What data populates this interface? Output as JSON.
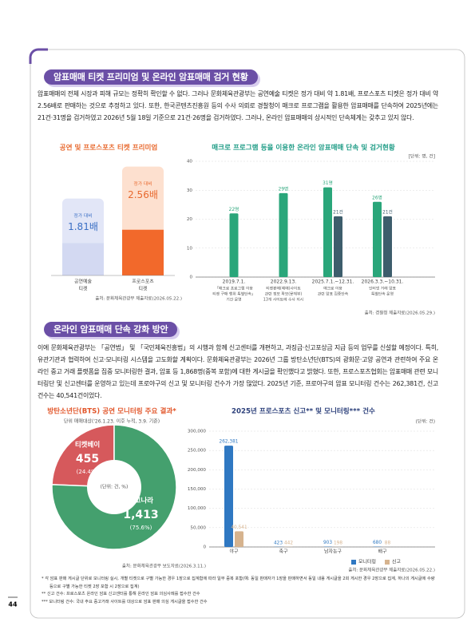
{
  "section1": {
    "title": "암표매매 티켓 프리미엄 및 온라인 암표매매 검거 현황",
    "body": "암표매매의 전체 시장과 피해 규모는 정확히 확인할 수 없다. 그러나 문화체육관광부는 공연예술 티켓은 정가 대비 약 1.81배, 프로스포츠 티켓은 정가 대비 약 2.56배로 판매하는 것으로 추정하고 있다. 또한, 한국콘텐츠진흥원 등의 수사 의뢰로 경찰청이 매크로 프로그램을 활용한 암표매매를 단속하여 2025년에는 21건·31명을 검거하였고 2026년 5월 18일 기준으로 21건·26명을 검거하였다. 그러나, 온라인 암표매매의 상시적인 단속체계는 갖추고 있지 않다."
  },
  "section2": {
    "title": "온라인 암표매매 단속 강화 방안",
    "body": "이에 문화체육관광부는 「공연법」 및 「국민체육진흥법」의 시행과 함께 신고센터를 개편하고, 과징금·신고포상금 지급 등의 업무를 신설할 예정이다. 특히, 유관기관과 협력하여 신고·모니터링 시스템을 고도화할 계획이다. 문화체육관광부는 2026년 그룹 방탄소년단(BTS)의 광화문·고양 공연과 관련하여 주요 온라인 중고 거래 플랫폼을 집중 모니터링한 결과, 암표 등 1,868명(중복 포함)에 대한 게시글을 확인했다고 밝혔다. 또한, 프로스포츠협회는 암표매매 관련 모니터링단 및 신고센터를 운영하고 있는데 프로야구의 신고 및 모니터링 건수가 가장 많았다. 2025년 기준, 프로야구의 암표 모니터링 건수는 262,381건, 신고 건수는 40,541건이었다."
  },
  "footnotes": [
    "* 각 암표 판매 게시글 단위로 모니터링 실시, 개별 티켓으로 구별 가능한 경우 1장으로 집계함에 따라 일부 중복 포함(예: 동일 판매자가 1장을 판매하면서 동일 내용 게시글을 2회 게시한 경우 2장으로 집계, 하나의 게시글에 수량 등으로 구별 가능한 티켓 2장 포함 시 2장으로 집계)",
    "** 신고 건수: 프로스포츠 온라인 암표 신고센터를 통해 온라인 암표 의심사례를 접수한 건수",
    "*** 모니터링 건수: 국내 주요 중고거래 사이트를 대상으로 암표 판매 의심 게시글을 접수한 건수"
  ],
  "page_number": "44",
  "chart_data": [
    {
      "type": "bar",
      "title": "공연 및 프로스포츠 티켓 프리미엄",
      "categories": [
        [
          "공연예술",
          "티켓"
        ],
        [
          "프로스포츠",
          "티켓"
        ]
      ],
      "values": [
        1.81,
        2.56
      ],
      "value_labels": [
        "1.81배",
        "2.56배"
      ],
      "value_captions": [
        "정가 대비",
        "정가 대비"
      ],
      "colors": [
        "#e2e6f7",
        "#fde0cf"
      ],
      "base_colors": [
        "#d3d9f2",
        "#f2692b"
      ],
      "label_colors": [
        "#3b6fc4",
        "#e8692e"
      ],
      "title_color": "#e8692e",
      "source": "출처: 문화체육관광부 제출자료(2026.05.22.)"
    },
    {
      "type": "bar",
      "title": "매크로 프로그램 등을 이용한 온라인 암표매매 단속 및 검거현황",
      "unit": "[단위: 명, 건]",
      "title_color": "#1f9c86",
      "categories": [
        "2019.7.1.",
        "2022.9.13.",
        "2025.7.1.~12.31.",
        "2026.3.3.~10.31."
      ],
      "category_notes": [
        [
          "「매크로 프로그램 이용",
          "티켓 구매 행위 특별단속」",
          "기간 운영"
        ],
        [
          "티켓판매(예매)사이트",
          "관련 정보 확보(문체부)",
          "13개 사이트에 수사 지시"
        ],
        [
          "매크로 이용",
          "관련 암표 집중단속"
        ],
        [
          "인터넷 거래 암표",
          "특별단속 운영"
        ]
      ],
      "series": [
        {
          "color": "#2aa67a",
          "values": [
            22,
            29,
            31,
            26
          ],
          "value_labels": [
            "22명",
            "29명",
            "31명",
            "26명"
          ]
        },
        {
          "color": "#3d5d6c",
          "values": [
            null,
            null,
            21,
            21
          ],
          "value_labels": [
            null,
            null,
            "21건",
            "21건"
          ]
        }
      ],
      "ylim": [
        0,
        40
      ],
      "yticks": [
        0,
        10,
        20,
        30,
        40
      ],
      "grid": true,
      "source": "출처: 경찰청 제출자료(2026.05.29.)"
    },
    {
      "type": "pie",
      "title": "방탄소년단(BTS) 공연 모니터링 주요 결과*",
      "subtitle": "단위 매매대상('26.1.23. 이후 누적, 3.9. 기준)",
      "title_color": "#e2572b",
      "center_label": "(단위: 건, %)",
      "categories": [
        "티켓베이",
        "중고나라"
      ],
      "values": [
        455,
        1413
      ],
      "value_labels": [
        "455",
        "1,413"
      ],
      "percents": [
        24.4,
        75.6
      ],
      "percent_labels": [
        "(24.4%)",
        "(75.6%)"
      ],
      "colors": [
        "#d6595c",
        "#44a06e"
      ],
      "source": "출처: 문화체육관광부 보도자료(2026.3.11.)"
    },
    {
      "type": "bar",
      "title": "2025년 프로스포츠 신고** 및 모니터링*** 건수",
      "unit": "(단위: 건)",
      "title_color": "#2b3f7a",
      "categories": [
        "야구",
        "축구",
        "남자농구",
        "배구"
      ],
      "series": [
        {
          "name": "모니터링",
          "color": "#2f78c2",
          "values": [
            262381,
            423,
            903,
            680
          ],
          "value_labels": [
            "262,381",
            "423",
            "903",
            "680"
          ]
        },
        {
          "name": "신고",
          "color": "#d6b38e",
          "values": [
            40541,
            442,
            198,
            88
          ],
          "value_labels": [
            "40,541",
            "442",
            "198",
            "88"
          ]
        }
      ],
      "ylim": [
        0,
        300000
      ],
      "yticks": [
        0,
        {
          "value": 50000,
          "label": "50,000"
        },
        {
          "value": 100000,
          "label": "100,000"
        },
        {
          "value": 150000,
          "label": "150,000"
        },
        {
          "value": 200000,
          "label": "200,000"
        },
        {
          "value": 250000,
          "label": "250,000"
        },
        {
          "value": 300000,
          "label": "300,000"
        }
      ],
      "grid": true,
      "legend": "bottom-right",
      "source": "출처: 문화체육관광부 제출자료(2026.05.22.)"
    }
  ]
}
